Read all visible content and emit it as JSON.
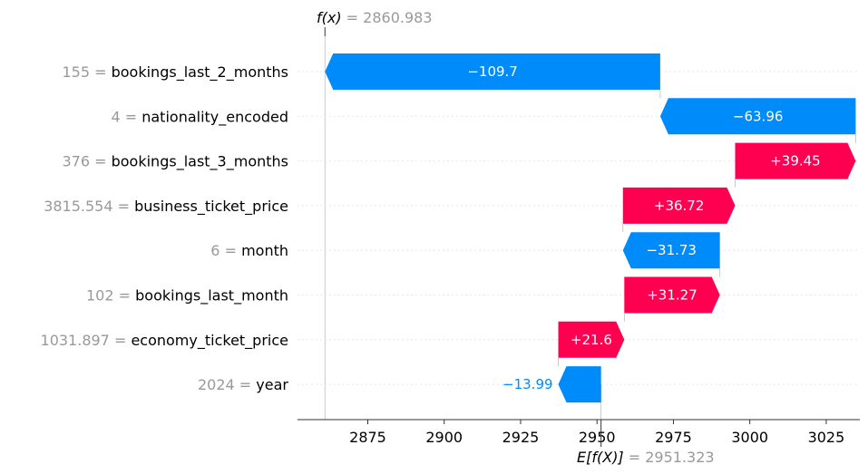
{
  "chart_data": {
    "type": "waterfall",
    "fx_label": "f(x)",
    "fx_value": "2860.983",
    "efx_label": "E[f(X)]",
    "efx_value": "2951.323",
    "base_value": 2951.323,
    "final_value": 2860.983,
    "xlim": [
      2852,
      3036
    ],
    "xticks": [
      2875,
      2900,
      2925,
      2950,
      2975,
      3000,
      3025
    ],
    "features": [
      {
        "value": "155",
        "name": "bookings_last_2_months",
        "contribution": -109.7,
        "label": "−109.7"
      },
      {
        "value": "4",
        "name": "nationality_encoded",
        "contribution": -63.96,
        "label": "−63.96"
      },
      {
        "value": "376",
        "name": "bookings_last_3_months",
        "contribution": 39.45,
        "label": "+39.45"
      },
      {
        "value": "3815.554",
        "name": "business_ticket_price",
        "contribution": 36.72,
        "label": "+36.72"
      },
      {
        "value": "6",
        "name": "month",
        "contribution": -31.73,
        "label": "−31.73"
      },
      {
        "value": "102",
        "name": "bookings_last_month",
        "contribution": 31.27,
        "label": "+31.27"
      },
      {
        "value": "1031.897",
        "name": "economy_ticket_price",
        "contribution": 21.6,
        "label": "+21.6"
      },
      {
        "value": "2024",
        "name": "year",
        "contribution": -13.99,
        "label": "−13.99"
      }
    ],
    "colors": {
      "positive": "#ff0051",
      "negative": "#008bfb",
      "muted": "#999999"
    },
    "grid": true
  }
}
